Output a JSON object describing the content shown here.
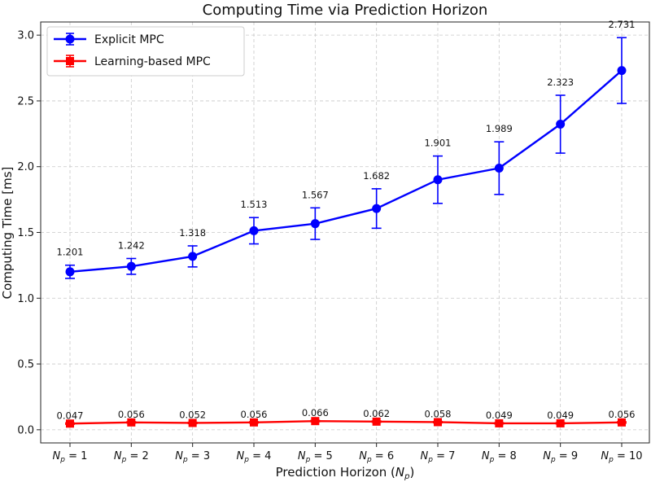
{
  "chart_data": {
    "type": "line",
    "title": "Computing Time via Prediction Horizon",
    "xlabel": "Prediction Horizon (N_p)",
    "xlabel_prefix": "Prediction Horizon (",
    "xlabel_symbol": "N",
    "xlabel_sub": "p",
    "xlabel_suffix": ")",
    "ylabel": "Computing Time [ms]",
    "categories": [
      "N_p = 1",
      "N_p = 2",
      "N_p = 3",
      "N_p = 4",
      "N_p = 5",
      "N_p = 6",
      "N_p = 7",
      "N_p = 8",
      "N_p = 9",
      "N_p = 10"
    ],
    "category_numbers": [
      "1",
      "2",
      "3",
      "4",
      "5",
      "6",
      "7",
      "8",
      "9",
      "10"
    ],
    "ylim": [
      -0.1,
      3.1
    ],
    "yticks": [
      0.0,
      0.5,
      1.0,
      1.5,
      2.0,
      2.5,
      3.0
    ],
    "ytick_labels": [
      "0.0",
      "0.5",
      "1.0",
      "1.5",
      "2.0",
      "2.5",
      "3.0"
    ],
    "grid": true,
    "legend_position": "top-left",
    "series": [
      {
        "name": "Explicit MPC",
        "color": "#0000ff",
        "marker": "circle",
        "values": [
          1.201,
          1.242,
          1.318,
          1.513,
          1.567,
          1.682,
          1.901,
          1.989,
          2.323,
          2.731
        ],
        "value_labels": [
          "1.201",
          "1.242",
          "1.318",
          "1.513",
          "1.567",
          "1.682",
          "1.901",
          "1.989",
          "2.323",
          "2.731"
        ],
        "errors": [
          0.05,
          0.06,
          0.08,
          0.1,
          0.12,
          0.15,
          0.18,
          0.2,
          0.22,
          0.25
        ]
      },
      {
        "name": "Learning-based MPC",
        "color": "#ff0000",
        "marker": "square",
        "values": [
          0.047,
          0.056,
          0.052,
          0.056,
          0.066,
          0.062,
          0.058,
          0.049,
          0.049,
          0.056
        ],
        "value_labels": [
          "0.047",
          "0.056",
          "0.052",
          "0.056",
          "0.066",
          "0.062",
          "0.058",
          "0.049",
          "0.049",
          "0.056"
        ],
        "errors": [
          0.005,
          0.005,
          0.005,
          0.005,
          0.005,
          0.005,
          0.005,
          0.005,
          0.005,
          0.005
        ]
      }
    ]
  }
}
